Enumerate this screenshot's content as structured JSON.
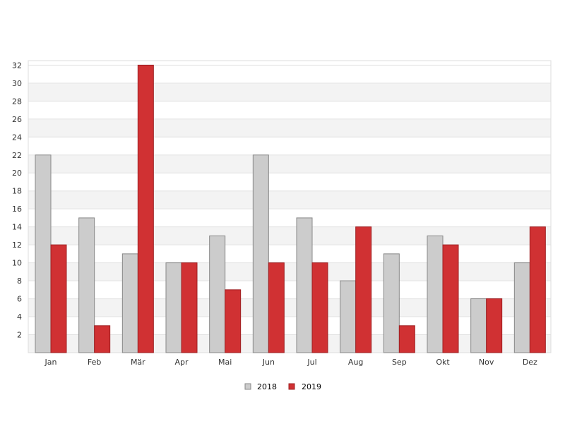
{
  "chart_data": {
    "type": "bar",
    "categories": [
      "Jan",
      "Feb",
      "Mär",
      "Apr",
      "Mai",
      "Jun",
      "Jul",
      "Aug",
      "Sep",
      "Okt",
      "Nov",
      "Dez"
    ],
    "series": [
      {
        "name": "2018",
        "values": [
          22,
          15,
          11,
          10,
          13,
          22,
          15,
          8,
          11,
          13,
          6,
          10
        ],
        "color": "#cccccc",
        "stroke": "#888888"
      },
      {
        "name": "2019",
        "values": [
          12,
          3,
          32,
          10,
          7,
          10,
          10,
          14,
          3,
          12,
          6,
          14
        ],
        "color": "#d03133",
        "stroke": "#9e1f22"
      }
    ],
    "ylim": [
      0,
      32.5
    ],
    "yticks": [
      2,
      4,
      6,
      8,
      10,
      12,
      14,
      16,
      18,
      20,
      22,
      24,
      26,
      28,
      30,
      32
    ],
    "grid": true,
    "band_colors": [
      "#f3f3f3",
      "#ffffff"
    ],
    "legend_position": "bottom-center"
  }
}
